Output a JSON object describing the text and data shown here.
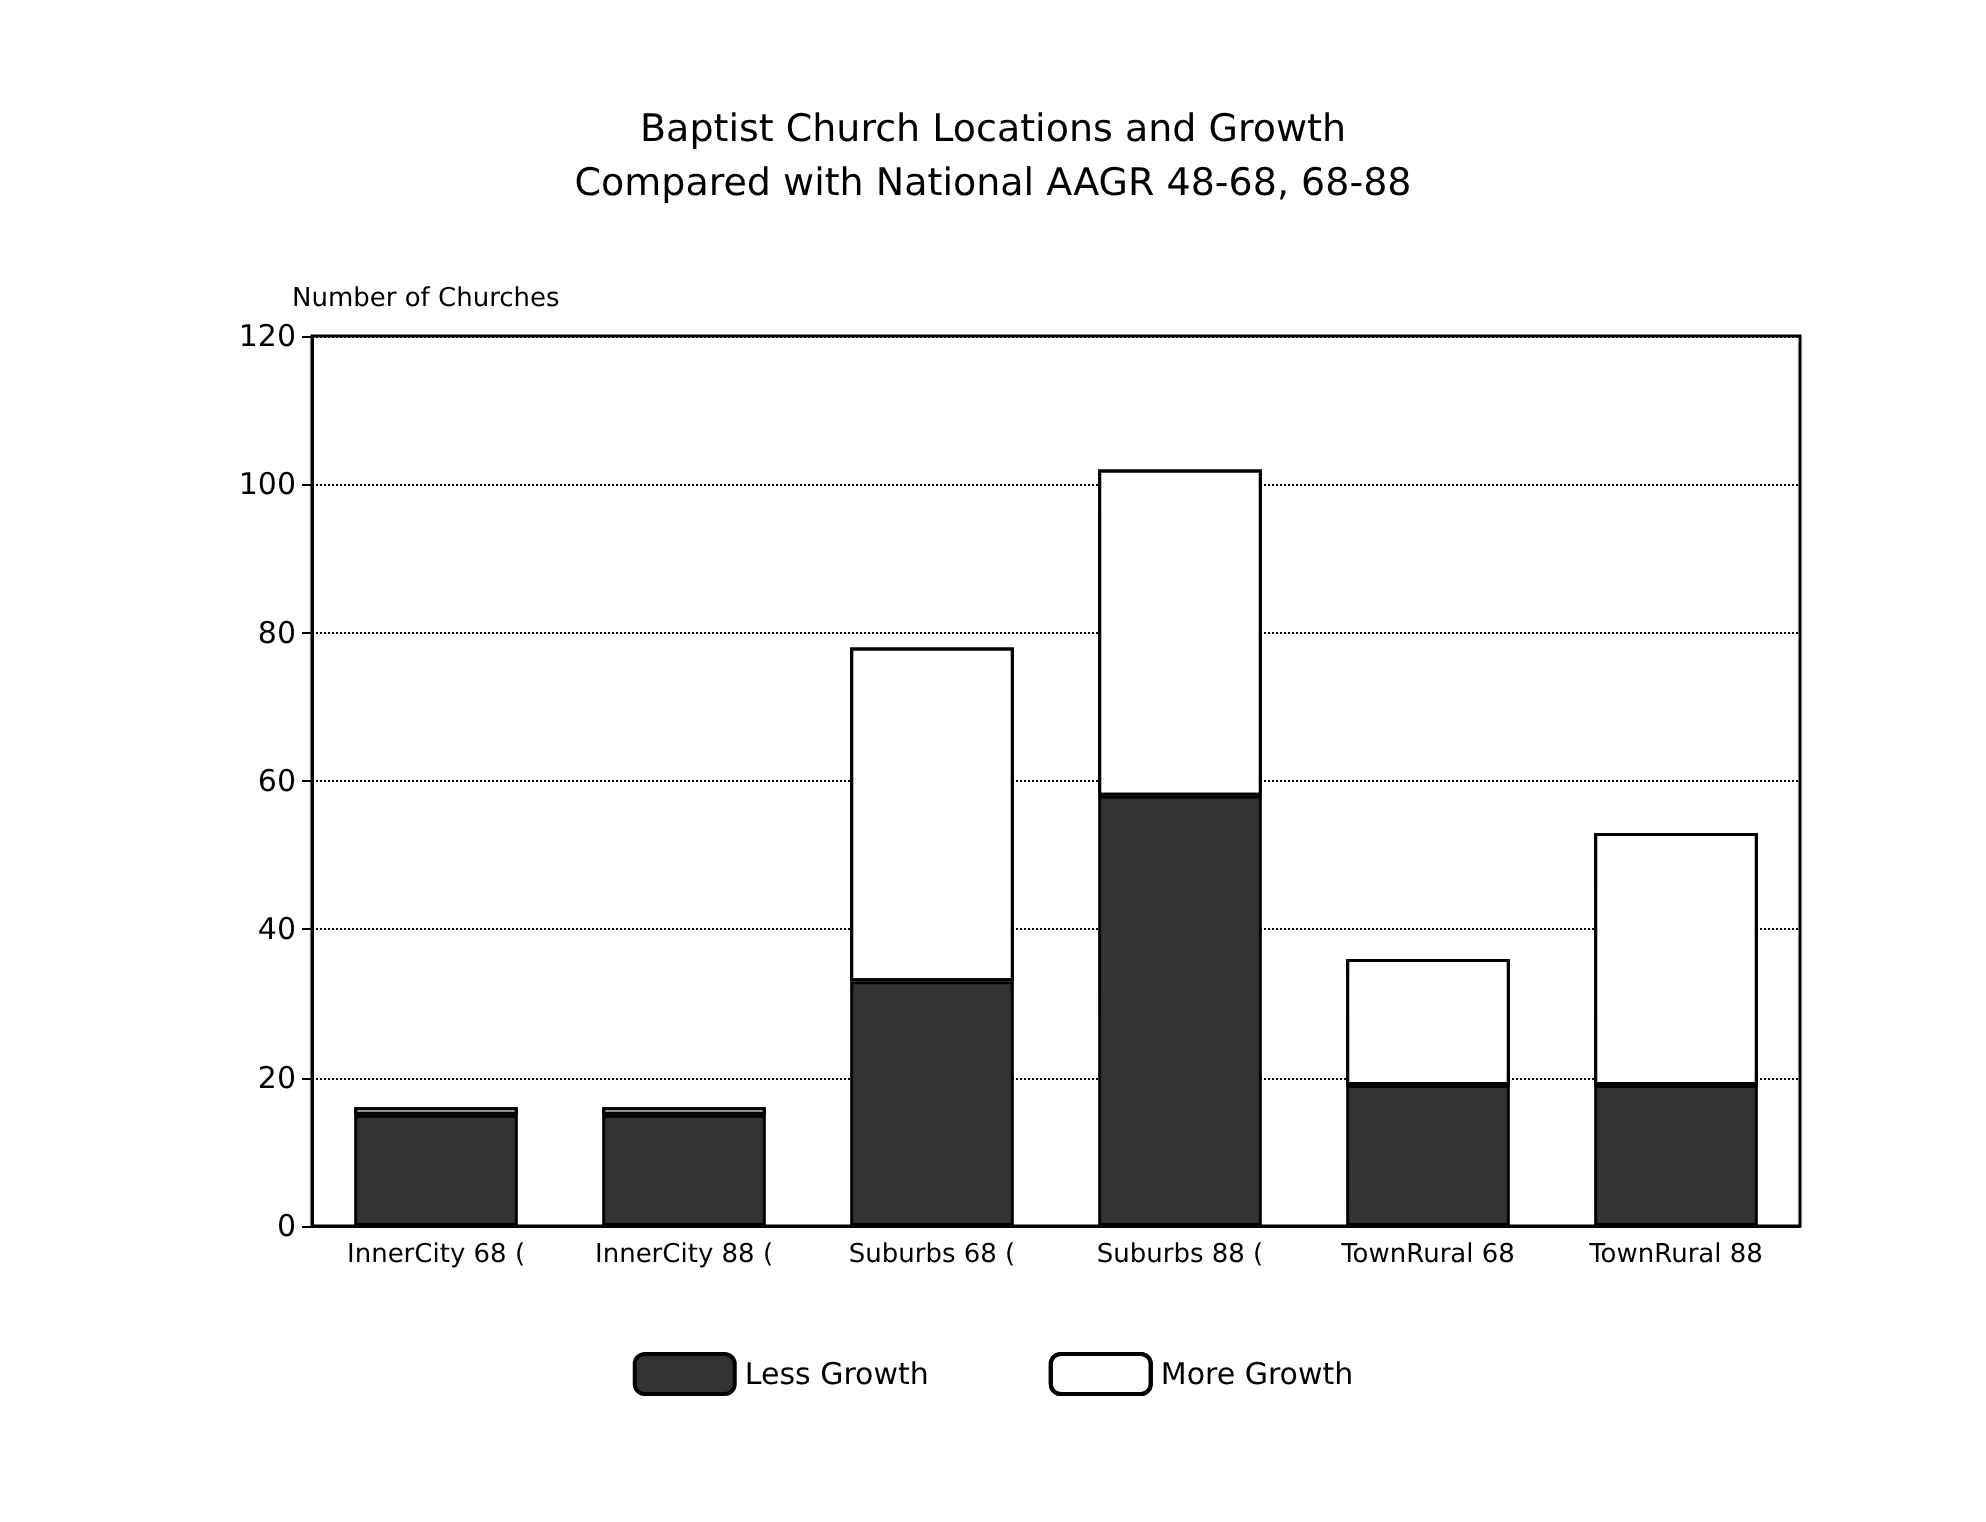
{
  "chart_data": {
    "type": "bar",
    "title": "Baptist Church Locations and Growth",
    "subtitle": "Compared with National AAGR 48-68, 68-88",
    "ylabel": "Number of Churches",
    "categories": [
      "InnerCity 68 (",
      "InnerCity 88 (",
      "Suburbs 68 (",
      "Suburbs 88 (",
      "TownRural 68",
      "TownRural 88"
    ],
    "series": [
      {
        "name": "Less Growth",
        "color": "#333333",
        "values": [
          15,
          15,
          33,
          58,
          19,
          19
        ]
      },
      {
        "name": "More Growth",
        "color": "#ffffff",
        "values": [
          1,
          1,
          45,
          44,
          17,
          34
        ]
      }
    ],
    "stacked": true,
    "ylim": [
      0,
      120
    ],
    "yticks": [
      0,
      20,
      40,
      60,
      80,
      100,
      120
    ],
    "grid": "y",
    "legend": "bottom"
  }
}
